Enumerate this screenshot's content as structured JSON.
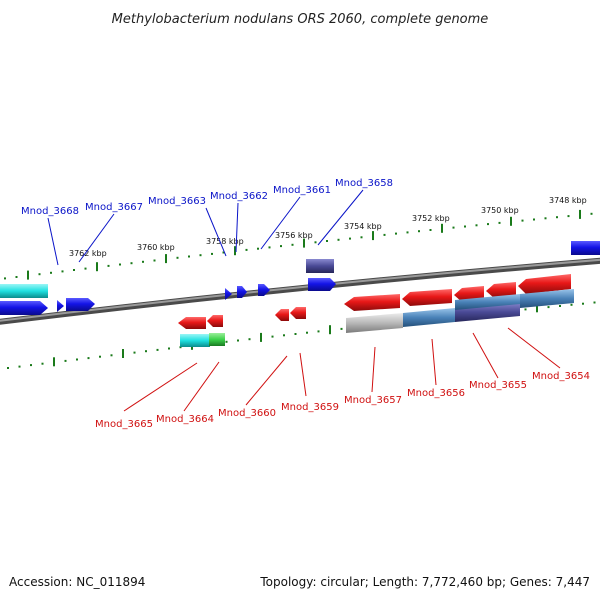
{
  "title": "Methylobacterium nodulans ORS 2060, complete genome",
  "footer": {
    "accession": "Accession: NC_011894",
    "summary": "Topology: circular; Length: 7,772,460 bp; Genes: 7,447"
  },
  "colors": {
    "forward_label": "#0a14c8",
    "reverse_label": "#d01010",
    "tick": "#1a7a1a",
    "backbone": "#7a7a7a",
    "forward_gene": "#1414e6",
    "reverse_gene": "#e81818",
    "cyan": "#1ee0e0",
    "green": "#3cd24a",
    "purple": "#4a4a96",
    "steel": "#4a82b8",
    "gray": "#b8b8b8"
  },
  "ticks": {
    "upper": [
      "3762 kbp",
      "3760 kbp",
      "3758 kbp",
      "3756 kbp",
      "3754 kbp",
      "3752 kbp",
      "3750 kbp",
      "3748 kbp"
    ]
  },
  "labels": {
    "forward": [
      "Mnod_3668",
      "Mnod_3667",
      "Mnod_3663",
      "Mnod_3662",
      "Mnod_3661",
      "Mnod_3658"
    ],
    "reverse": [
      "Mnod_3665",
      "Mnod_3664",
      "Mnod_3660",
      "Mnod_3659",
      "Mnod_3657",
      "Mnod_3656",
      "Mnod_3655",
      "Mnod_3654"
    ]
  }
}
